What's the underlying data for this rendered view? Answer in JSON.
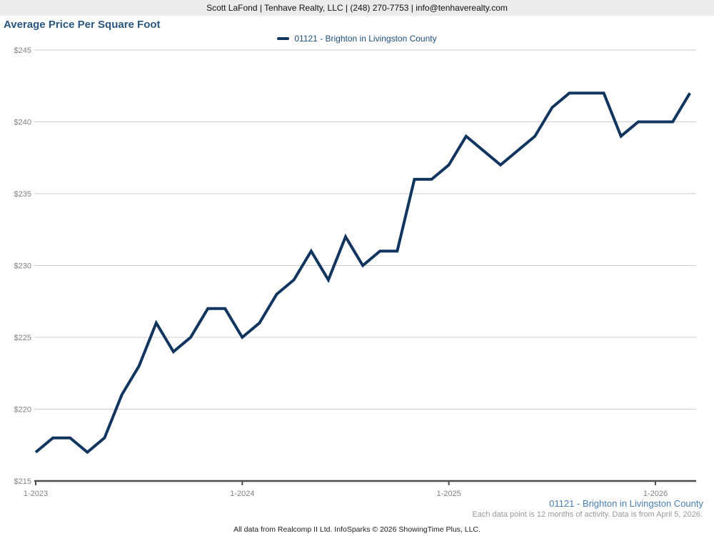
{
  "header": {
    "contact": "Scott LaFond | Tenhave Realty, LLC | (248) 270-7753 | info@tenhaverealty.com"
  },
  "title": "Average Price Per Square Foot",
  "legend": {
    "label": "01121 - Brighton in Livingston County"
  },
  "footer": {
    "series_label": "01121 - Brighton in Livingston County",
    "note": "Each data point is 12 months of activity. Data is from April 5, 2026.",
    "attribution": "All data from Realcomp II Ltd. InfoSparks © 2026 ShowingTime Plus, LLC."
  },
  "colors": {
    "line": "#12355f",
    "legend_text": "#1e4d7b",
    "title": "#2a567e",
    "footer_link": "#4a7db4"
  },
  "chart_data": {
    "type": "line",
    "title": "Average Price Per Square Foot",
    "xlabel": "",
    "ylabel": "",
    "ylim": [
      215,
      245
    ],
    "grid": true,
    "legend_position": "top-center",
    "y_ticks": [
      215,
      220,
      225,
      230,
      235,
      240,
      245
    ],
    "y_tick_labels": [
      "$215",
      "$220",
      "$225",
      "$230",
      "$235",
      "$240",
      "$245"
    ],
    "x_tick_indices": [
      0,
      12,
      24,
      36
    ],
    "x_tick_labels": [
      "1-2023",
      "1-2024",
      "1-2025",
      "1-2026"
    ],
    "categories": [
      "1-2023",
      "2-2023",
      "3-2023",
      "4-2023",
      "5-2023",
      "6-2023",
      "7-2023",
      "8-2023",
      "9-2023",
      "10-2023",
      "11-2023",
      "12-2023",
      "1-2024",
      "2-2024",
      "3-2024",
      "4-2024",
      "5-2024",
      "6-2024",
      "7-2024",
      "8-2024",
      "9-2024",
      "10-2024",
      "11-2024",
      "12-2024",
      "1-2025",
      "2-2025",
      "3-2025",
      "4-2025",
      "5-2025",
      "6-2025",
      "7-2025",
      "8-2025",
      "9-2025",
      "10-2025",
      "11-2025",
      "12-2025",
      "1-2026",
      "2-2026",
      "3-2026"
    ],
    "series": [
      {
        "name": "01121 - Brighton in Livingston County",
        "values": [
          217,
          218,
          218,
          217,
          218,
          221,
          223,
          226,
          224,
          225,
          227,
          227,
          225,
          226,
          228,
          229,
          231,
          229,
          232,
          230,
          231,
          231,
          236,
          236,
          237,
          239,
          238,
          237,
          238,
          239,
          241,
          242,
          242,
          242,
          239,
          240,
          240,
          240,
          242
        ]
      }
    ]
  }
}
